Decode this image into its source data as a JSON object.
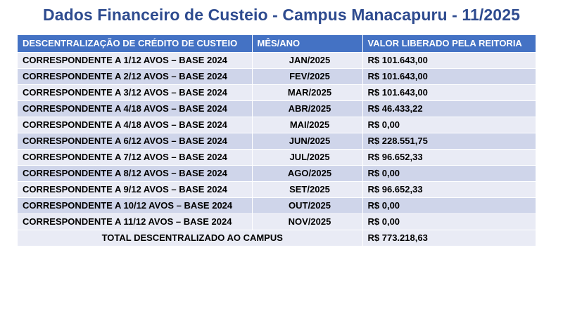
{
  "title": "Dados Financeiro de Custeio - Campus Manacapuru - 11/2025",
  "table": {
    "headers": [
      "DESCENTRALIZAÇÃO DE CRÉDITO DE CUSTEIO",
      "MÊS/ANO",
      "VALOR LIBERADO PELA REITORIA"
    ],
    "rows": [
      {
        "description": "CORRESPONDENTE A 1/12 AVOS – BASE 2024",
        "month": "JAN/2025",
        "value": "R$ 101.643,00"
      },
      {
        "description": "CORRESPONDENTE A 2/12 AVOS – BASE 2024",
        "month": "FEV/2025",
        "value": "R$ 101.643,00"
      },
      {
        "description": "CORRESPONDENTE A 3/12 AVOS – BASE 2024",
        "month": "MAR/2025",
        "value": "R$ 101.643,00"
      },
      {
        "description": "CORRESPONDENTE A 4/18 AVOS – BASE 2024",
        "month": "ABR/2025",
        "value": "R$ 46.433,22"
      },
      {
        "description": "CORRESPONDENTE A 4/18 AVOS – BASE 2024",
        "month": "MAI/2025",
        "value": "R$ 0,00"
      },
      {
        "description": "CORRESPONDENTE A 6/12 AVOS – BASE 2024",
        "month": "JUN/2025",
        "value": "R$ 228.551,75"
      },
      {
        "description": "CORRESPONDENTE A 7/12 AVOS – BASE 2024",
        "month": "JUL/2025",
        "value": "R$ 96.652,33"
      },
      {
        "description": "CORRESPONDENTE A 8/12 AVOS – BASE 2024",
        "month": "AGO/2025",
        "value": "R$ 0,00"
      },
      {
        "description": "CORRESPONDENTE A 9/12 AVOS – BASE 2024",
        "month": "SET/2025",
        "value": "R$ 96.652,33"
      },
      {
        "description": "CORRESPONDENTE A 10/12 AVOS – BASE 2024",
        "month": "OUT/2025",
        "value": "R$ 0,00"
      },
      {
        "description": "CORRESPONDENTE A 11/12 AVOS – BASE 2024",
        "month": "NOV/2025",
        "value": "R$ 0,00"
      }
    ],
    "total": {
      "label": "TOTAL DESCENTRALIZADO AO CAMPUS",
      "value": "R$ 773.218,63"
    }
  },
  "colors": {
    "title": "#2E4B8F",
    "header_bg": "#4472C4",
    "row_light": "#E9EBF5",
    "row_dark": "#CFD5EA"
  }
}
